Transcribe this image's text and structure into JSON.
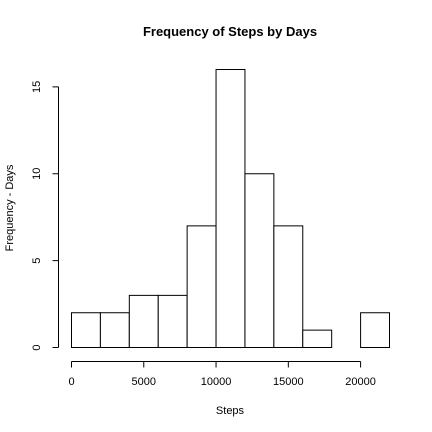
{
  "chart_data": {
    "type": "bar",
    "title": "Frequency of Steps by Days",
    "xlabel": "Steps",
    "ylabel": "Frequency - Days",
    "bins": [
      {
        "from": 0,
        "to": 2000,
        "count": 2
      },
      {
        "from": 2000,
        "to": 4000,
        "count": 2
      },
      {
        "from": 4000,
        "to": 6000,
        "count": 3
      },
      {
        "from": 6000,
        "to": 8000,
        "count": 3
      },
      {
        "from": 8000,
        "to": 10000,
        "count": 7
      },
      {
        "from": 10000,
        "to": 12000,
        "count": 16
      },
      {
        "from": 12000,
        "to": 14000,
        "count": 10
      },
      {
        "from": 14000,
        "to": 16000,
        "count": 7
      },
      {
        "from": 16000,
        "to": 18000,
        "count": 1
      },
      {
        "from": 18000,
        "to": 20000,
        "count": 0
      },
      {
        "from": 20000,
        "to": 22000,
        "count": 2
      }
    ],
    "xlim": [
      0,
      22000
    ],
    "ylim": [
      0,
      16
    ],
    "xticks": [
      0,
      5000,
      10000,
      15000,
      20000
    ],
    "xtick_labels": [
      "0",
      "5000",
      "10000",
      "15000",
      "20000"
    ],
    "yticks": [
      0,
      5,
      10,
      15
    ],
    "ytick_labels": [
      "0",
      "5",
      "10",
      "15"
    ],
    "grid": false,
    "bar_fill": "#ffffff",
    "bar_stroke": "#000000"
  }
}
